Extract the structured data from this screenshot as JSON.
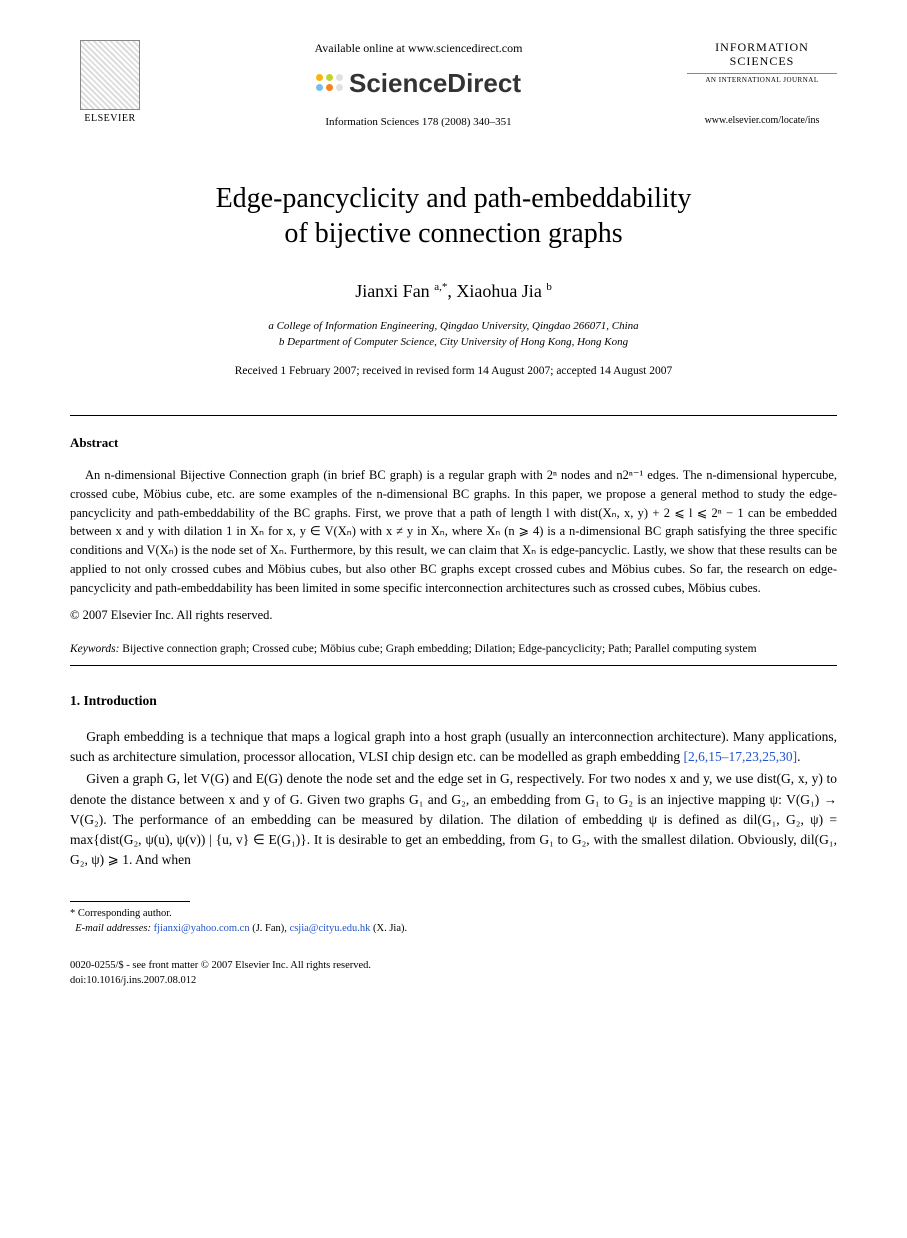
{
  "header": {
    "publisher_name": "ELSEVIER",
    "available_text": "Available online at www.sciencedirect.com",
    "sciencedirect_label": "ScienceDirect",
    "journal_ref": "Information Sciences 178 (2008) 340–351",
    "journal_title_line1": "INFORMATION",
    "journal_title_line2": "SCIENCES",
    "journal_subtitle": "AN INTERNATIONAL JOURNAL",
    "journal_url": "www.elsevier.com/locate/ins",
    "sd_dot_colors": [
      "#f6b50f",
      "#bcd631",
      "#e0e0e0",
      "#7abde8",
      "#f58220",
      "#e0e0e0"
    ]
  },
  "paper": {
    "title_line1": "Edge-pancyclicity and path-embeddability",
    "title_line2": "of bijective connection graphs",
    "authors_html": "Jianxi Fan <sup>a,*</sup>, Xiaohua Jia <sup>b</sup>",
    "author1": "Jianxi Fan",
    "author1_sup": "a,*",
    "author2": "Xiaohua Jia",
    "author2_sup": "b",
    "affil_a": "a College of Information Engineering, Qingdao University, Qingdao 266071, China",
    "affil_b": "b Department of Computer Science, City University of Hong Kong, Hong Kong",
    "dates": "Received 1 February 2007; received in revised form 14 August 2007; accepted 14 August 2007"
  },
  "abstract": {
    "heading": "Abstract",
    "body": "An n-dimensional Bijective Connection graph (in brief BC graph) is a regular graph with 2ⁿ nodes and n2ⁿ⁻¹ edges. The n-dimensional hypercube, crossed cube, Möbius cube, etc. are some examples of the n-dimensional BC graphs. In this paper, we propose a general method to study the edge-pancyclicity and path-embeddability of the BC graphs. First, we prove that a path of length l with dist(Xₙ, x, y) + 2 ⩽ l ⩽ 2ⁿ − 1 can be embedded between x and y with dilation 1 in Xₙ for x, y ∈ V(Xₙ) with x ≠ y in Xₙ, where Xₙ (n ⩾ 4) is a n-dimensional BC graph satisfying the three specific conditions and V(Xₙ) is the node set of Xₙ. Furthermore, by this result, we can claim that Xₙ is edge-pancyclic. Lastly, we show that these results can be applied to not only crossed cubes and Möbius cubes, but also other BC graphs except crossed cubes and Möbius cubes. So far, the research on edge-pancyclicity and path-embeddability has been limited in some specific interconnection architectures such as crossed cubes, Möbius cubes.",
    "copyright": "© 2007 Elsevier Inc. All rights reserved.",
    "keywords_label": "Keywords:",
    "keywords_text": "Bijective connection graph; Crossed cube; Möbius cube; Graph embedding; Dilation; Edge-pancyclicity; Path; Parallel computing system"
  },
  "section1": {
    "heading": "1. Introduction",
    "para1_pre": "Graph embedding is a technique that maps a logical graph into a host graph (usually an interconnection architecture). Many applications, such as architecture simulation, processor allocation, VLSI chip design etc. can be modelled as graph embedding ",
    "para1_refs": "[2,6,15–17,23,25,30]",
    "para1_post": ".",
    "para2": "Given a graph G, let V(G) and E(G) denote the node set and the edge set in G, respectively. For two nodes x and y, we use dist(G, x, y) to denote the distance between x and y of G. Given two graphs G₁ and G₂, an embedding from G₁ to G₂ is an injective mapping ψ: V(G₁) → V(G₂). The performance of an embedding can be measured by dilation. The dilation of embedding ψ is defined as dil(G₁, G₂, ψ) = max{dist(G₂, ψ(u), ψ(v)) | {u, v} ∈ E(G₁)}. It is desirable to get an embedding, from G₁ to G₂, with the smallest dilation. Obviously, dil(G₁, G₂, ψ) ⩾ 1. And when"
  },
  "footnotes": {
    "corresponding": "* Corresponding author.",
    "email_label": "E-mail addresses:",
    "email1": "fjianxi@yahoo.com.cn",
    "email1_who": "(J. Fan),",
    "email2": "csjia@cityu.edu.hk",
    "email2_who": "(X. Jia)."
  },
  "footer": {
    "line1": "0020-0255/$ - see front matter © 2007 Elsevier Inc. All rights reserved.",
    "line2": "doi:10.1016/j.ins.2007.08.012"
  }
}
